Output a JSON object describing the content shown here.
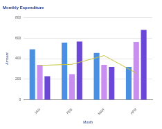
{
  "chart_data": {
    "type": "bar",
    "title": "Monthly Expenditure",
    "x_label": "Month",
    "y_label": "Amount",
    "categories": [
      "JAN",
      "FEB",
      "MAR",
      "APR"
    ],
    "series": [
      {
        "color": "#4a90e2",
        "values": [
          490,
          555,
          455,
          320
        ]
      },
      {
        "color": "#c88ef0",
        "values": [
          340,
          250,
          340,
          560
        ]
      },
      {
        "color": "#6a47d6",
        "values": [
          230,
          565,
          320,
          680
        ]
      },
      {
        "type": "line",
        "marker": "none",
        "color": "#c6c43a",
        "values": [
          335,
          345,
          430,
          260
        ]
      }
    ],
    "ylim": [
      0,
      800
    ],
    "yticks": [
      0,
      200,
      400,
      600,
      800
    ],
    "grid": true
  }
}
